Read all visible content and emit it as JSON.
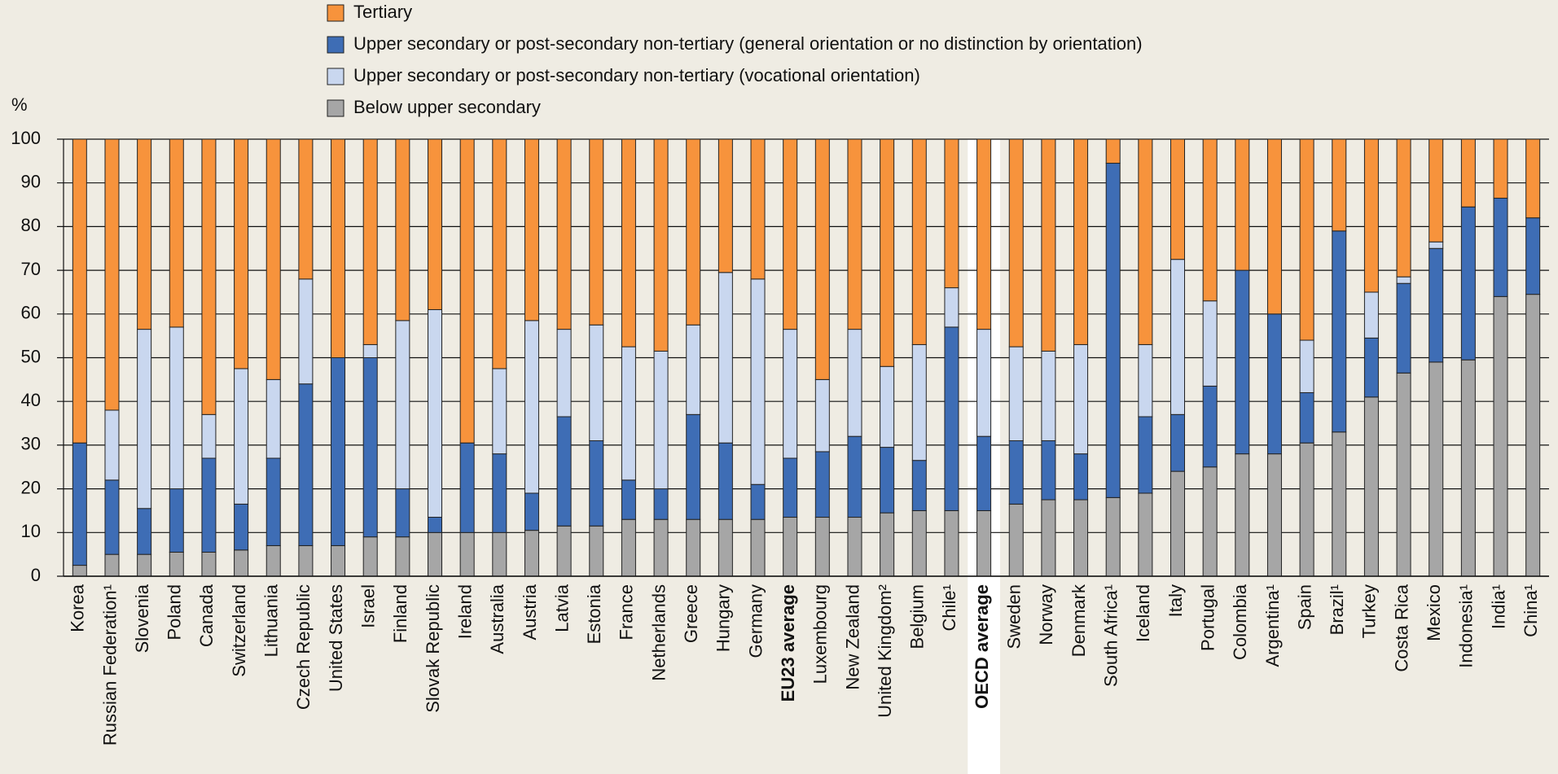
{
  "chart_data": {
    "type": "stacked_bar",
    "y_label": "%",
    "categories": [
      "Korea",
      "Russian Federation¹",
      "Slovenia",
      "Poland",
      "Canada",
      "Switzerland",
      "Lithuania",
      "Czech Republic",
      "United States",
      "Israel",
      "Finland",
      "Slovak Republic",
      "Ireland",
      "Australia",
      "Austria",
      "Latvia",
      "Estonia",
      "France",
      "Netherlands",
      "Greece",
      "Hungary",
      "Germany",
      "EU23 average",
      "Luxembourg",
      "New Zealand",
      "United Kingdom²",
      "Belgium",
      "Chile¹",
      "OECD average",
      "Sweden",
      "Norway",
      "Denmark",
      "South Africa¹",
      "Iceland",
      "Italy",
      "Portugal",
      "Colombia",
      "Argentina¹",
      "Spain",
      "Brazil¹",
      "Turkey",
      "Costa Rica",
      "Mexico",
      "Indonesia¹",
      "India¹",
      "China¹"
    ],
    "series": [
      {
        "name": "Tertiary",
        "color": "#f7933c",
        "values": [
          69.5,
          62,
          43.5,
          43,
          63,
          52.5,
          55,
          32,
          50,
          47,
          41.5,
          39,
          69.5,
          52.5,
          41.5,
          43.5,
          42.5,
          47.5,
          48.5,
          42.5,
          30.5,
          32,
          43.5,
          55,
          43.5,
          52,
          47,
          34,
          43.5,
          47.5,
          48.5,
          47,
          5.5,
          47,
          27.5,
          37,
          30,
          40,
          46,
          21,
          35,
          31.5,
          23.5,
          15.5,
          13.5,
          18
        ]
      },
      {
        "name": "Upper secondary or post-secondary non-tertiary (general orientation or no distinction by orientation)",
        "color": "#3e6db5",
        "values": [
          28,
          17,
          10.5,
          14.5,
          21.5,
          10.5,
          20,
          37,
          43,
          41,
          11,
          3.5,
          20.5,
          18,
          8.5,
          25,
          19.5,
          9,
          7,
          24,
          17.5,
          8,
          13.5,
          15,
          18.5,
          15,
          11.5,
          42,
          17,
          14.5,
          13.5,
          10.5,
          76.5,
          17.5,
          13,
          18.5,
          42,
          32,
          11.5,
          46,
          13.5,
          20.5,
          26,
          35,
          22.5,
          17.5
        ]
      },
      {
        "name": "Upper secondary or post-secondary non-tertiary (vocational orientation)",
        "color": "#c9d7ef",
        "values": [
          0,
          16,
          41,
          37,
          10,
          31,
          18,
          24,
          0,
          3,
          38.5,
          47.5,
          0,
          19.5,
          39.5,
          20,
          26.5,
          30.5,
          31.5,
          20.5,
          39,
          47,
          29.5,
          16.5,
          24.5,
          18.5,
          26.5,
          9,
          24.5,
          21.5,
          20.5,
          25,
          0,
          16.5,
          35.5,
          19.5,
          0,
          0,
          12,
          0,
          10.5,
          1.5,
          1.5,
          0,
          0,
          0
        ]
      },
      {
        "name": "Below upper secondary",
        "color": "#a6a6a6",
        "values": [
          2.5,
          5,
          5,
          5.5,
          5.5,
          6,
          7,
          7,
          7,
          9,
          9,
          10,
          10,
          10,
          10.5,
          11.5,
          11.5,
          13,
          13,
          13,
          13,
          13,
          13.5,
          13.5,
          13.5,
          14.5,
          15,
          15,
          15,
          16.5,
          17.5,
          17.5,
          18,
          19,
          24,
          25,
          28,
          28,
          30.5,
          33,
          41,
          46.5,
          49,
          49.5,
          64,
          64.5
        ]
      }
    ],
    "stack_order": [
      3,
      1,
      2,
      0
    ],
    "bold_categories": [
      22,
      28
    ],
    "highlight_category": 28,
    "ylim": [
      0,
      100
    ],
    "yticks": [
      0,
      10,
      20,
      30,
      40,
      50,
      60,
      70,
      80,
      90,
      100
    ],
    "grid": true
  }
}
